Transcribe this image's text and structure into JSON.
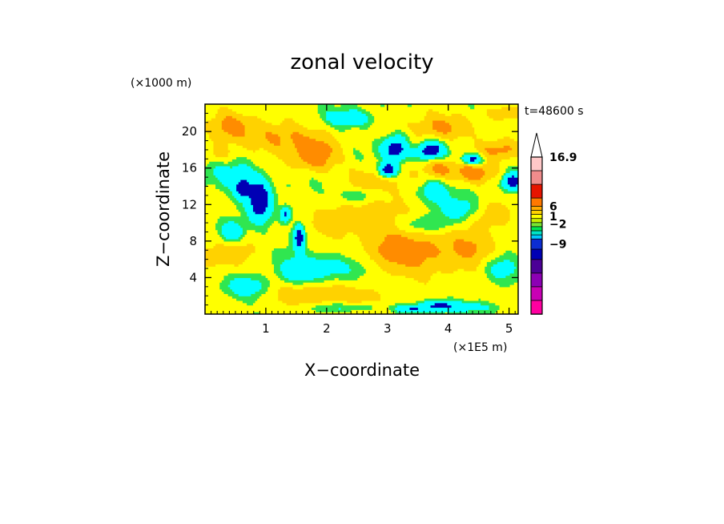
{
  "chart_data": {
    "type": "heatmap",
    "title": "zonal velocity",
    "xlabel": "X−coordinate",
    "ylabel": "Z−coordinate",
    "x_unit": "(×1E5 m)",
    "y_unit": "(×1000 m)",
    "time_label": "t=48600 s",
    "xlim": [
      0,
      5.15
    ],
    "ylim": [
      0,
      23
    ],
    "x_ticks": [
      "1",
      "2",
      "3",
      "4",
      "5"
    ],
    "y_ticks": [
      "4",
      "8",
      "12",
      "16",
      "20"
    ],
    "colorbar": {
      "levels": [
        {
          "color": "#ff00a0"
        },
        {
          "color": "#c800b4"
        },
        {
          "color": "#8c00b4"
        },
        {
          "color": "#4b0096"
        },
        {
          "color": "#0000b4"
        },
        {
          "color": "#0c2dd2"
        },
        {
          "color": "#00c8ff"
        },
        {
          "color": "#00e6c8"
        },
        {
          "color": "#00e650"
        },
        {
          "color": "#78e632"
        },
        {
          "color": "#c8f000"
        },
        {
          "color": "#ffff00"
        },
        {
          "color": "#ffd200"
        },
        {
          "color": "#ffaa00"
        },
        {
          "color": "#ff7800"
        },
        {
          "color": "#e61400"
        },
        {
          "color": "#f08c8c"
        },
        {
          "color": "#ffc8c8"
        }
      ],
      "tick_labels": [
        "16.9",
        "6",
        "1",
        "−2",
        "−9"
      ]
    },
    "field_colors": {
      "strong_negative": "#0000b4",
      "negative": "#00ffff",
      "weak_negative": "#30e650",
      "weak_positive": "#ffff00",
      "positive": "#ffd200",
      "strong_positive": "#ff8c00"
    },
    "features": [
      {
        "x": 3.5,
        "z": 6.5,
        "ux": 0.9,
        "uz": 2.5,
        "v": 6
      },
      {
        "x": 3.1,
        "z": 10.5,
        "ux": 0.6,
        "uz": 3,
        "v": 4
      },
      {
        "x": 1.8,
        "z": 17.5,
        "ux": 0.35,
        "uz": 1.8,
        "v": 8
      },
      {
        "x": 1.2,
        "z": 19.5,
        "ux": 0.5,
        "uz": 1.8,
        "v": 6
      },
      {
        "x": 0.4,
        "z": 20.5,
        "ux": 0.35,
        "uz": 1.5,
        "v": 6
      },
      {
        "x": 0.25,
        "z": 17.5,
        "ux": 0.3,
        "uz": 1.3,
        "v": 5
      },
      {
        "x": 3.9,
        "z": 20.5,
        "ux": 0.5,
        "uz": 1.3,
        "v": 6
      },
      {
        "x": 4.4,
        "z": 15.5,
        "ux": 0.35,
        "uz": 1.2,
        "v": 7
      },
      {
        "x": 3.85,
        "z": 16,
        "ux": 0.25,
        "uz": 1,
        "v": 6
      },
      {
        "x": 4.85,
        "z": 18,
        "ux": 0.35,
        "uz": 1.2,
        "v": 6
      },
      {
        "x": 2.15,
        "z": 10,
        "ux": 0.4,
        "uz": 2,
        "v": 4
      },
      {
        "x": 2.75,
        "z": 15,
        "ux": 0.4,
        "uz": 1.5,
        "v": 4
      },
      {
        "x": 0.35,
        "z": 6.5,
        "ux": 0.45,
        "uz": 2,
        "v": 4
      },
      {
        "x": 4.5,
        "z": 7.5,
        "ux": 0.4,
        "uz": 2,
        "v": 4
      },
      {
        "x": 1.75,
        "z": 2.5,
        "ux": 0.6,
        "uz": 1.8,
        "v": 5
      },
      {
        "x": 4.9,
        "z": 22,
        "ux": 0.3,
        "uz": 0.8,
        "v": 5
      },
      {
        "x": 4.65,
        "z": 11,
        "ux": 0.35,
        "uz": 1.5,
        "v": 4
      },
      {
        "x": 2.6,
        "z": 2,
        "ux": 0.5,
        "uz": 1.2,
        "v": 3
      },
      {
        "x": 3.4,
        "z": 18.5,
        "ux": 0.25,
        "uz": 1,
        "v": 4
      },
      {
        "x": 3.15,
        "z": 18.2,
        "ux": 0.22,
        "uz": 1.3,
        "v": -14
      },
      {
        "x": 3.7,
        "z": 18,
        "ux": 0.22,
        "uz": 0.9,
        "v": -14
      },
      {
        "x": 3.0,
        "z": 15.8,
        "ux": 0.15,
        "uz": 0.8,
        "v": -14
      },
      {
        "x": 4.4,
        "z": 17,
        "ux": 0.18,
        "uz": 0.6,
        "v": -13
      },
      {
        "x": 5.05,
        "z": 14.5,
        "ux": 0.15,
        "uz": 0.9,
        "v": -13
      },
      {
        "x": 0.9,
        "z": 12.5,
        "ux": 0.18,
        "uz": 2.2,
        "v": -14
      },
      {
        "x": 0.62,
        "z": 13.8,
        "ux": 0.12,
        "uz": 1,
        "v": -12
      },
      {
        "x": 1.55,
        "z": 8.5,
        "ux": 0.09,
        "uz": 1.4,
        "v": -13
      },
      {
        "x": 1.33,
        "z": 11,
        "ux": 0.09,
        "uz": 0.8,
        "v": -11
      },
      {
        "x": 3.75,
        "z": 13.5,
        "ux": 0.25,
        "uz": 1.2,
        "v": -7
      },
      {
        "x": 3.85,
        "z": 1,
        "ux": 0.3,
        "uz": 0.6,
        "v": -10
      },
      {
        "x": 3.4,
        "z": 0.6,
        "ux": 0.25,
        "uz": 0.4,
        "v": -9
      },
      {
        "x": 0.45,
        "z": 9,
        "ux": 0.2,
        "uz": 1.2,
        "v": -9
      },
      {
        "x": 1.55,
        "z": 4.5,
        "ux": 0.35,
        "uz": 1.5,
        "v": -7
      },
      {
        "x": 0.7,
        "z": 3,
        "ux": 0.35,
        "uz": 1.2,
        "v": -6
      },
      {
        "x": 4.15,
        "z": 11.5,
        "ux": 0.4,
        "uz": 1.2,
        "v": -6
      },
      {
        "x": 2.15,
        "z": 5,
        "ux": 0.5,
        "uz": 1.6,
        "v": -6
      },
      {
        "x": 3.6,
        "z": 9.8,
        "ux": 0.55,
        "uz": 1,
        "v": -5
      },
      {
        "x": 4.85,
        "z": 5,
        "ux": 0.3,
        "uz": 1.5,
        "v": -6
      },
      {
        "x": 0.4,
        "z": 15.5,
        "ux": 0.5,
        "uz": 2,
        "v": -5
      },
      {
        "x": 2.4,
        "z": 21.5,
        "ux": 0.4,
        "uz": 0.9,
        "v": -6
      },
      {
        "x": 2.3,
        "z": 0.8,
        "ux": 0.6,
        "uz": 0.5,
        "v": -4
      },
      {
        "x": 4.3,
        "z": 0.8,
        "ux": 0.5,
        "uz": 0.5,
        "v": -4
      },
      {
        "x": 2.5,
        "z": 13,
        "ux": 0.3,
        "uz": 0.8,
        "v": -5
      }
    ]
  }
}
